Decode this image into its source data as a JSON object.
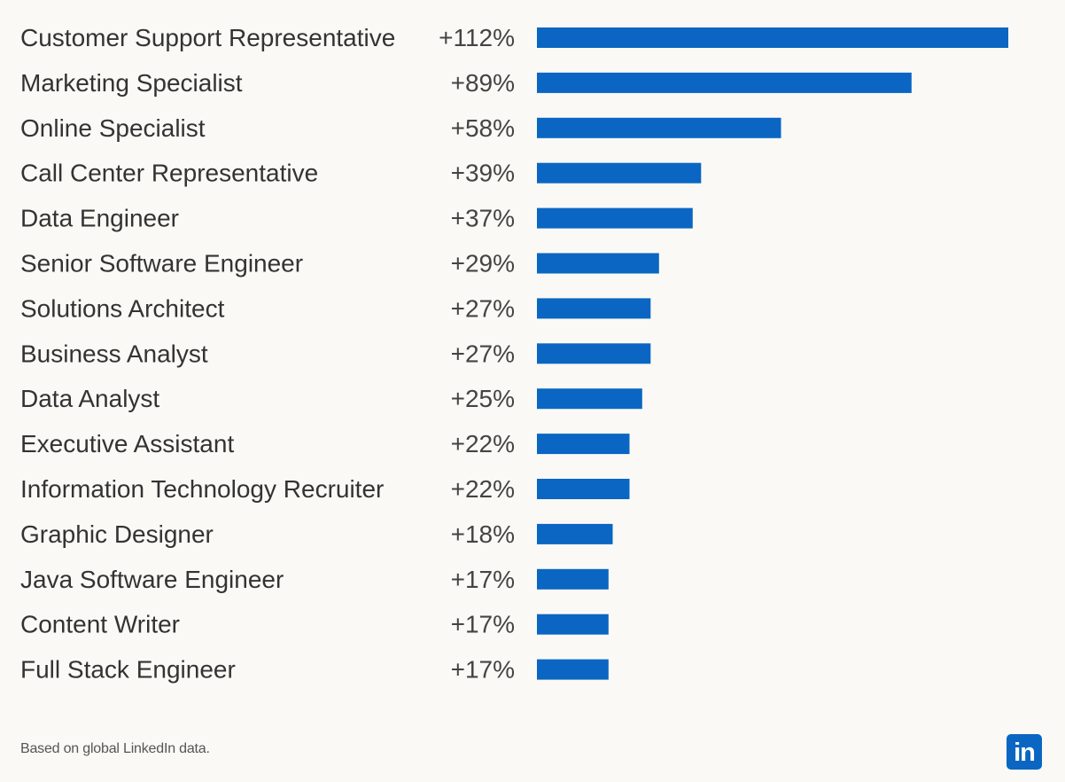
{
  "chart_data": {
    "type": "bar",
    "orientation": "horizontal",
    "categories": [
      "Customer Support Representative",
      "Marketing Specialist",
      "Online Specialist",
      "Call Center Representative",
      "Data Engineer",
      "Senior Software Engineer",
      "Solutions Architect",
      "Business Analyst",
      "Data Analyst",
      "Executive Assistant",
      "Information Technology Recruiter",
      "Graphic Designer",
      "Java Software Engineer",
      "Content Writer",
      "Full Stack Engineer"
    ],
    "values": [
      112,
      89,
      58,
      39,
      37,
      29,
      27,
      27,
      25,
      22,
      22,
      18,
      17,
      17,
      17
    ],
    "value_labels": [
      "+112%",
      "+89%",
      "+58%",
      "+39%",
      "+37%",
      "+29%",
      "+27%",
      "+27%",
      "+25%",
      "+22%",
      "+22%",
      "+18%",
      "+17%",
      "+17%",
      "+17%"
    ],
    "title": "",
    "xlabel": "",
    "ylabel": "",
    "xlim": [
      0,
      112
    ],
    "grid": false,
    "bar_color": "#0a66c2"
  },
  "footer": {
    "note": "Based on global LinkedIn data.",
    "logo_text": "in",
    "logo_color": "#0a66c2"
  }
}
